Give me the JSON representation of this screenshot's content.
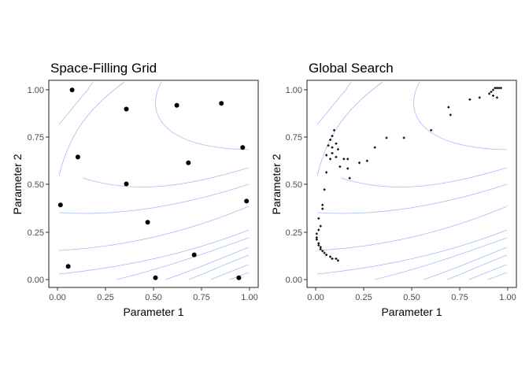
{
  "colors": {
    "points": "#000000",
    "contours": "#a7bdf3",
    "panel_border": "#333333",
    "tick_labels": "#4d4d4d",
    "background": "#ffffff"
  },
  "chart_data": [
    {
      "type": "scatter",
      "title": "Space-Filling Grid",
      "xlabel": "Parameter 1",
      "ylabel": "Parameter 2",
      "xlim": [
        -0.04,
        1.04
      ],
      "ylim": [
        -0.04,
        1.04
      ],
      "x_ticks": [
        "0.00",
        "0.25",
        "0.50",
        "0.75",
        "1.00"
      ],
      "y_ticks": [
        "0.00",
        "0.25",
        "0.50",
        "0.75",
        "1.00"
      ],
      "grid": false,
      "background_contours": true,
      "marker": "large dot",
      "points": [
        {
          "x": 0.08,
          "y": 0.99
        },
        {
          "x": 0.36,
          "y": 0.89
        },
        {
          "x": 0.62,
          "y": 0.91
        },
        {
          "x": 0.85,
          "y": 0.92
        },
        {
          "x": 0.96,
          "y": 0.69
        },
        {
          "x": 0.11,
          "y": 0.64
        },
        {
          "x": 0.68,
          "y": 0.61
        },
        {
          "x": 0.36,
          "y": 0.5
        },
        {
          "x": 0.02,
          "y": 0.39
        },
        {
          "x": 0.98,
          "y": 0.41
        },
        {
          "x": 0.47,
          "y": 0.3
        },
        {
          "x": 0.71,
          "y": 0.13
        },
        {
          "x": 0.06,
          "y": 0.07
        },
        {
          "x": 0.51,
          "y": 0.01
        },
        {
          "x": 0.94,
          "y": 0.01
        }
      ]
    },
    {
      "type": "scatter",
      "title": "Global Search",
      "xlabel": "Parameter 1",
      "ylabel": "Parameter 2",
      "xlim": [
        -0.04,
        1.04
      ],
      "ylim": [
        -0.04,
        1.04
      ],
      "x_ticks": [
        "0.00",
        "0.25",
        "0.50",
        "0.75",
        "1.00"
      ],
      "y_ticks": [
        "0.00",
        "0.25",
        "0.50",
        "0.75",
        "1.00"
      ],
      "grid": false,
      "background_contours": true,
      "marker": "small cross",
      "points": [
        {
          "x": 0.94,
          "y": 1.0
        },
        {
          "x": 0.93,
          "y": 1.0
        },
        {
          "x": 0.92,
          "y": 0.99
        },
        {
          "x": 0.95,
          "y": 1.0
        },
        {
          "x": 0.96,
          "y": 1.0
        },
        {
          "x": 0.91,
          "y": 0.98
        },
        {
          "x": 0.9,
          "y": 0.97
        },
        {
          "x": 0.92,
          "y": 0.96
        },
        {
          "x": 0.94,
          "y": 0.95
        },
        {
          "x": 0.85,
          "y": 0.95
        },
        {
          "x": 0.8,
          "y": 0.94
        },
        {
          "x": 0.69,
          "y": 0.9
        },
        {
          "x": 0.7,
          "y": 0.86
        },
        {
          "x": 0.6,
          "y": 0.78
        },
        {
          "x": 0.46,
          "y": 0.74
        },
        {
          "x": 0.37,
          "y": 0.74
        },
        {
          "x": 0.31,
          "y": 0.69
        },
        {
          "x": 0.27,
          "y": 0.62
        },
        {
          "x": 0.23,
          "y": 0.61
        },
        {
          "x": 0.17,
          "y": 0.63
        },
        {
          "x": 0.15,
          "y": 0.63
        },
        {
          "x": 0.1,
          "y": 0.78
        },
        {
          "x": 0.09,
          "y": 0.75
        },
        {
          "x": 0.08,
          "y": 0.73
        },
        {
          "x": 0.11,
          "y": 0.71
        },
        {
          "x": 0.07,
          "y": 0.7
        },
        {
          "x": 0.09,
          "y": 0.69
        },
        {
          "x": 0.12,
          "y": 0.68
        },
        {
          "x": 0.09,
          "y": 0.66
        },
        {
          "x": 0.06,
          "y": 0.65
        },
        {
          "x": 0.11,
          "y": 0.64
        },
        {
          "x": 0.08,
          "y": 0.63
        },
        {
          "x": 0.13,
          "y": 0.59
        },
        {
          "x": 0.17,
          "y": 0.58
        },
        {
          "x": 0.06,
          "y": 0.56
        },
        {
          "x": 0.18,
          "y": 0.53
        },
        {
          "x": 0.05,
          "y": 0.47
        },
        {
          "x": 0.04,
          "y": 0.39
        },
        {
          "x": 0.04,
          "y": 0.37
        },
        {
          "x": 0.02,
          "y": 0.32
        },
        {
          "x": 0.03,
          "y": 0.28
        },
        {
          "x": 0.02,
          "y": 0.26
        },
        {
          "x": 0.01,
          "y": 0.24
        },
        {
          "x": 0.01,
          "y": 0.22
        },
        {
          "x": 0.01,
          "y": 0.21
        },
        {
          "x": 0.02,
          "y": 0.19
        },
        {
          "x": 0.02,
          "y": 0.18
        },
        {
          "x": 0.03,
          "y": 0.16
        },
        {
          "x": 0.04,
          "y": 0.15
        },
        {
          "x": 0.05,
          "y": 0.14
        },
        {
          "x": 0.06,
          "y": 0.13
        },
        {
          "x": 0.08,
          "y": 0.12
        },
        {
          "x": 0.09,
          "y": 0.11
        },
        {
          "x": 0.11,
          "y": 0.11
        },
        {
          "x": 0.12,
          "y": 0.1
        },
        {
          "x": 0.03,
          "y": 0.17
        }
      ]
    }
  ]
}
